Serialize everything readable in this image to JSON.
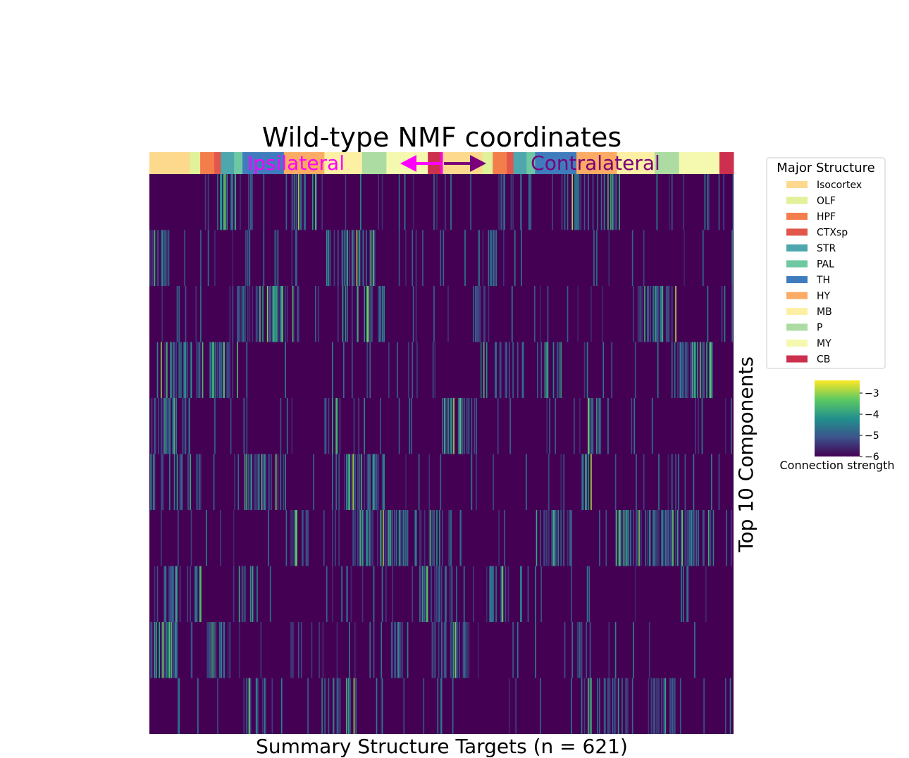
{
  "chart_data": {
    "type": "heatmap",
    "title": "Wild-type NMF coordinates",
    "xlabel": "Summary Structure Targets (n = 621)",
    "ylabel": "Top 10 Components",
    "n_columns": 621,
    "n_rows": 10,
    "hemisphere_labels": {
      "ipsi": "Ipsilateral",
      "contra": "Contralateral"
    },
    "hemisphere_colors": {
      "ipsi": "#ff00ff",
      "contra": "#7a007a"
    },
    "structure_bar": [
      {
        "structure": "Isocortex",
        "start": 0,
        "end": 43
      },
      {
        "structure": "OLF",
        "start": 43,
        "end": 54
      },
      {
        "structure": "HPF",
        "start": 54,
        "end": 69
      },
      {
        "structure": "CTXsp",
        "start": 69,
        "end": 76
      },
      {
        "structure": "STR",
        "start": 76,
        "end": 90
      },
      {
        "structure": "PAL",
        "start": 90,
        "end": 99
      },
      {
        "structure": "TH",
        "start": 99,
        "end": 143
      },
      {
        "structure": "HY",
        "start": 143,
        "end": 186
      },
      {
        "structure": "MB",
        "start": 186,
        "end": 226
      },
      {
        "structure": "P",
        "start": 226,
        "end": 252
      },
      {
        "structure": "MY",
        "start": 252,
        "end": 296
      },
      {
        "structure": "CB",
        "start": 296,
        "end": 311
      },
      {
        "structure": "Isocortex",
        "start": 311,
        "end": 354
      },
      {
        "structure": "OLF",
        "start": 354,
        "end": 365
      },
      {
        "structure": "HPF",
        "start": 365,
        "end": 380
      },
      {
        "structure": "CTXsp",
        "start": 380,
        "end": 387
      },
      {
        "structure": "STR",
        "start": 387,
        "end": 401
      },
      {
        "structure": "PAL",
        "start": 401,
        "end": 410
      },
      {
        "structure": "TH",
        "start": 410,
        "end": 454
      },
      {
        "structure": "HY",
        "start": 454,
        "end": 497
      },
      {
        "structure": "MB",
        "start": 497,
        "end": 537
      },
      {
        "structure": "P",
        "start": 537,
        "end": 563
      },
      {
        "structure": "MY",
        "start": 563,
        "end": 606
      },
      {
        "structure": "CB",
        "start": 606,
        "end": 621
      }
    ],
    "row_hot_ranges": [
      [
        [
          72,
          114
        ],
        [
          145,
          185
        ],
        [
          370,
          395
        ],
        [
          435,
          500
        ]
      ],
      [
        [
          0,
          20
        ],
        [
          95,
          110
        ],
        [
          130,
          140
        ],
        [
          185,
          240
        ]
      ],
      [
        [
          85,
          160
        ],
        [
          200,
          250
        ],
        [
          345,
          360
        ],
        [
          510,
          560
        ]
      ],
      [
        [
          8,
          95
        ],
        [
          355,
          380
        ],
        [
          420,
          440
        ],
        [
          560,
          600
        ]
      ],
      [
        [
          0,
          45
        ],
        [
          180,
          205
        ],
        [
          310,
          350
        ],
        [
          465,
          480
        ]
      ],
      [
        [
          0,
          55
        ],
        [
          100,
          145
        ],
        [
          205,
          250
        ],
        [
          455,
          470
        ]
      ],
      [
        [
          215,
          310
        ],
        [
          410,
          450
        ],
        [
          495,
          600
        ],
        [
          150,
          170
        ]
      ],
      [
        [
          5,
          55
        ],
        [
          95,
          115
        ],
        [
          290,
          320
        ],
        [
          360,
          385
        ]
      ],
      [
        [
          0,
          35
        ],
        [
          60,
          80
        ],
        [
          250,
          270
        ],
        [
          300,
          340
        ]
      ],
      [
        [
          100,
          125
        ],
        [
          180,
          225
        ],
        [
          460,
          510
        ],
        [
          530,
          560
        ]
      ]
    ],
    "value_range": [
      -6,
      -2.4
    ],
    "legend": {
      "title": "Major Structure",
      "placement": "right",
      "items": [
        {
          "label": "Isocortex",
          "color": "#fdd98d"
        },
        {
          "label": "OLF",
          "color": "#e0f199"
        },
        {
          "label": "HPF",
          "color": "#f47d4c"
        },
        {
          "label": "CTXsp",
          "color": "#e1574b"
        },
        {
          "label": "STR",
          "color": "#4ea7ad"
        },
        {
          "label": "PAL",
          "color": "#6ec8a2"
        },
        {
          "label": "TH",
          "color": "#3f7cbd"
        },
        {
          "label": "HY",
          "color": "#fbab63"
        },
        {
          "label": "MB",
          "color": "#fdf0a5"
        },
        {
          "label": "P",
          "color": "#acdca1"
        },
        {
          "label": "MY",
          "color": "#f5f9b0"
        },
        {
          "label": "CB",
          "color": "#cd304e"
        }
      ]
    },
    "colorbar": {
      "label": "Connection strength",
      "range": [
        -6,
        -2.4
      ],
      "ticks": [
        "−3",
        "−4",
        "−5",
        "−6"
      ],
      "tick_values": [
        -3,
        -4,
        -5,
        -6
      ],
      "colormap": "viridis"
    }
  }
}
